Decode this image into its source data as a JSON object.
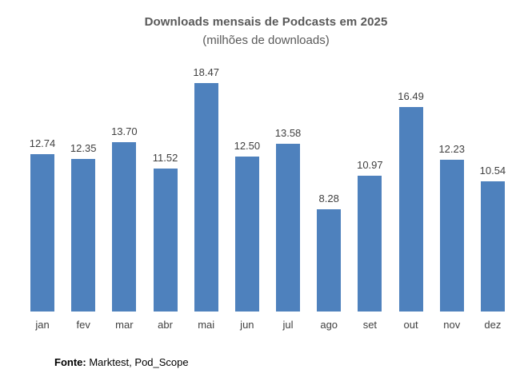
{
  "chart_data": {
    "type": "bar",
    "title": "Downloads mensais de Podcasts em 2025",
    "subtitle": "(milhões de downloads)",
    "categories": [
      "jan",
      "fev",
      "mar",
      "abr",
      "mai",
      "jun",
      "jul",
      "ago",
      "set",
      "out",
      "nov",
      "dez"
    ],
    "values": [
      12.74,
      12.35,
      13.7,
      11.52,
      18.47,
      12.5,
      13.58,
      8.28,
      10.97,
      16.49,
      12.23,
      10.54
    ],
    "value_labels": [
      "12.74",
      "12.35",
      "13.70",
      "11.52",
      "18.47",
      "12.50",
      "13.58",
      "8.28",
      "10.97",
      "16.49",
      "12.23",
      "10.54"
    ],
    "ylim": [
      0,
      20
    ],
    "grid": false,
    "legend": "none",
    "bar_color": "#4E81BD",
    "title_color": "#595959",
    "label_color": "#404040"
  },
  "footer": {
    "source_label": "Fonte:",
    "source_text": " Marktest, Pod_Scope"
  }
}
